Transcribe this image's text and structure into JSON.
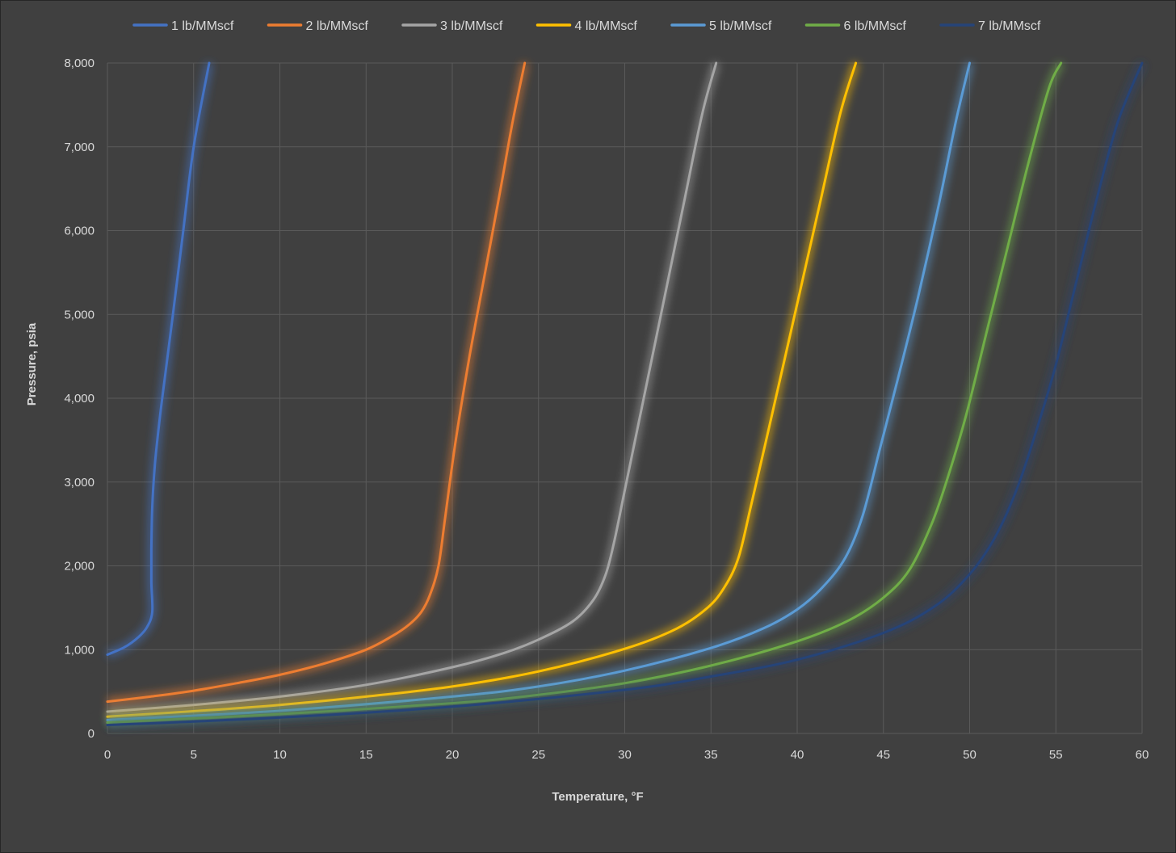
{
  "chart_data": {
    "type": "line",
    "title": "",
    "xlabel": "Temperature, °F",
    "ylabel": "Pressure, psia",
    "xlim": [
      0,
      60
    ],
    "ylim": [
      0,
      8000
    ],
    "x_ticks": [
      0,
      5,
      10,
      15,
      20,
      25,
      30,
      35,
      40,
      45,
      50,
      55,
      60
    ],
    "x_tick_labels": [
      "0",
      "5",
      "10",
      "15",
      "20",
      "25",
      "30",
      "35",
      "40",
      "45",
      "50",
      "55",
      "60"
    ],
    "y_ticks": [
      0,
      1000,
      2000,
      3000,
      4000,
      5000,
      6000,
      7000,
      8000
    ],
    "y_tick_labels": [
      "0",
      "1,000",
      "2,000",
      "3,000",
      "4,000",
      "5,000",
      "6,000",
      "7,000",
      "8,000"
    ],
    "grid": true,
    "legend_position": "top",
    "background_color": "#404040",
    "series": [
      {
        "name": "1 lb/MMscf",
        "color": "#4472C4",
        "points": [
          [
            0,
            940
          ],
          [
            1,
            1030
          ],
          [
            1.8,
            1150
          ],
          [
            2.3,
            1270
          ],
          [
            2.6,
            1450
          ],
          [
            2.55,
            1800
          ],
          [
            2.55,
            2200
          ],
          [
            2.6,
            2700
          ],
          [
            2.75,
            3200
          ],
          [
            3.0,
            3700
          ],
          [
            3.3,
            4200
          ],
          [
            3.8,
            5000
          ],
          [
            4.4,
            6000
          ],
          [
            5.0,
            7000
          ],
          [
            5.9,
            8000
          ]
        ]
      },
      {
        "name": "2 lb/MMscf",
        "color": "#ED7D31",
        "points": [
          [
            0,
            380
          ],
          [
            2.5,
            440
          ],
          [
            5,
            510
          ],
          [
            7.5,
            600
          ],
          [
            10,
            700
          ],
          [
            12.5,
            830
          ],
          [
            15,
            1000
          ],
          [
            16.5,
            1160
          ],
          [
            17.5,
            1300
          ],
          [
            18.2,
            1450
          ],
          [
            18.7,
            1650
          ],
          [
            19.2,
            2000
          ],
          [
            19.6,
            2600
          ],
          [
            20.2,
            3500
          ],
          [
            21.0,
            4500
          ],
          [
            21.9,
            5500
          ],
          [
            22.8,
            6500
          ],
          [
            23.5,
            7300
          ],
          [
            24.2,
            8000
          ]
        ]
      },
      {
        "name": "3 lb/MMscf",
        "color": "#A5A5A5",
        "points": [
          [
            0,
            260
          ],
          [
            5,
            340
          ],
          [
            10,
            440
          ],
          [
            15,
            580
          ],
          [
            20,
            790
          ],
          [
            23,
            960
          ],
          [
            25,
            1120
          ],
          [
            27,
            1340
          ],
          [
            28.2,
            1600
          ],
          [
            28.9,
            1900
          ],
          [
            29.4,
            2300
          ],
          [
            30.0,
            2900
          ],
          [
            30.8,
            3700
          ],
          [
            31.6,
            4500
          ],
          [
            32.5,
            5400
          ],
          [
            33.5,
            6400
          ],
          [
            34.5,
            7400
          ],
          [
            35.3,
            8000
          ]
        ]
      },
      {
        "name": "4 lb/MMscf",
        "color": "#FFC000",
        "points": [
          [
            0,
            200
          ],
          [
            5,
            265
          ],
          [
            10,
            340
          ],
          [
            15,
            440
          ],
          [
            20,
            560
          ],
          [
            25,
            740
          ],
          [
            30,
            1010
          ],
          [
            33,
            1250
          ],
          [
            34.8,
            1500
          ],
          [
            35.8,
            1750
          ],
          [
            36.6,
            2100
          ],
          [
            37.3,
            2700
          ],
          [
            38.2,
            3500
          ],
          [
            39.2,
            4400
          ],
          [
            40.3,
            5400
          ],
          [
            41.4,
            6400
          ],
          [
            42.5,
            7400
          ],
          [
            43.4,
            8000
          ]
        ]
      },
      {
        "name": "5 lb/MMscf",
        "color": "#5B9BD5",
        "points": [
          [
            0,
            160
          ],
          [
            10,
            270
          ],
          [
            20,
            440
          ],
          [
            25,
            560
          ],
          [
            30,
            750
          ],
          [
            35,
            1020
          ],
          [
            38,
            1250
          ],
          [
            40,
            1480
          ],
          [
            41.5,
            1750
          ],
          [
            42.8,
            2100
          ],
          [
            43.8,
            2600
          ],
          [
            44.8,
            3400
          ],
          [
            45.8,
            4200
          ],
          [
            47.0,
            5200
          ],
          [
            48.2,
            6300
          ],
          [
            49.2,
            7300
          ],
          [
            50.0,
            8000
          ]
        ]
      },
      {
        "name": "6 lb/MMscf",
        "color": "#70AD47",
        "points": [
          [
            0,
            130
          ],
          [
            10,
            230
          ],
          [
            20,
            360
          ],
          [
            25,
            460
          ],
          [
            30,
            600
          ],
          [
            35,
            810
          ],
          [
            40,
            1100
          ],
          [
            43,
            1350
          ],
          [
            45,
            1620
          ],
          [
            46.5,
            1950
          ],
          [
            47.8,
            2500
          ],
          [
            48.8,
            3100
          ],
          [
            49.8,
            3800
          ],
          [
            51.0,
            4800
          ],
          [
            52.2,
            5800
          ],
          [
            53.4,
            6800
          ],
          [
            54.6,
            7700
          ],
          [
            55.3,
            8000
          ]
        ]
      },
      {
        "name": "7 lb/MMscf",
        "color": "#264478",
        "points": [
          [
            0,
            100
          ],
          [
            10,
            190
          ],
          [
            20,
            320
          ],
          [
            30,
            520
          ],
          [
            35,
            680
          ],
          [
            40,
            880
          ],
          [
            45,
            1200
          ],
          [
            48,
            1520
          ],
          [
            50,
            1900
          ],
          [
            51.5,
            2350
          ],
          [
            52.8,
            2950
          ],
          [
            54.0,
            3700
          ],
          [
            55.0,
            4400
          ],
          [
            56.2,
            5400
          ],
          [
            57.4,
            6400
          ],
          [
            58.6,
            7300
          ],
          [
            60,
            8000
          ]
        ]
      }
    ]
  }
}
